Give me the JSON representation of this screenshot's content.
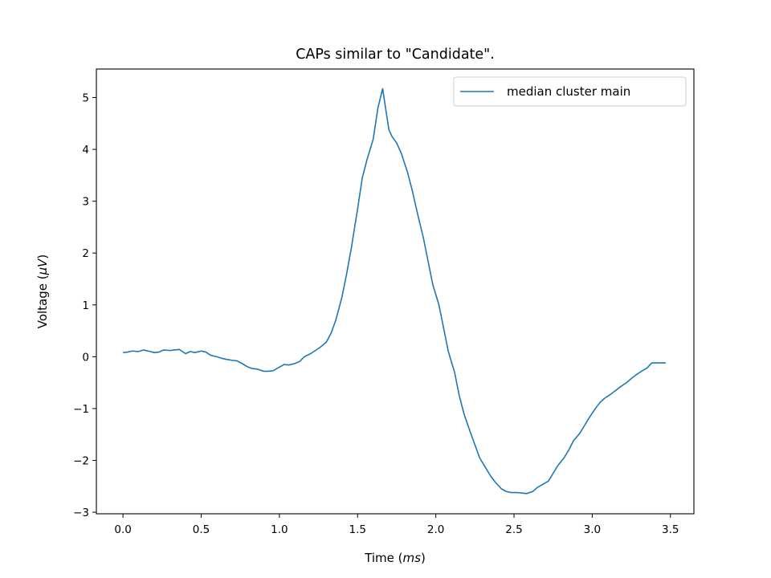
{
  "chart_data": {
    "type": "line",
    "title": "CAPs similar to \"Candidate\".",
    "xlabel_prefix": "Time (",
    "xlabel_unit": "ms",
    "xlabel_suffix": ")",
    "ylabel_prefix": "Voltage (",
    "ylabel_unit": "μV",
    "ylabel_suffix": ")",
    "xlim": [
      -0.17,
      3.65
    ],
    "ylim": [
      -3.03,
      5.55
    ],
    "x_ticks": [
      0.0,
      0.5,
      1.0,
      1.5,
      2.0,
      2.5,
      3.0,
      3.5
    ],
    "x_tick_labels": [
      "0.0",
      "0.5",
      "1.0",
      "1.5",
      "2.0",
      "2.5",
      "3.0",
      "3.5"
    ],
    "y_ticks": [
      -3,
      -2,
      -1,
      0,
      1,
      2,
      3,
      4,
      5
    ],
    "y_tick_labels": [
      "−3",
      "−2",
      "−1",
      "0",
      "1",
      "2",
      "3",
      "4",
      "5"
    ],
    "grid": false,
    "legend_position": "top-right",
    "series": [
      {
        "name": "median cluster main",
        "color": "#1f77b4",
        "x": [
          0.0,
          0.03,
          0.06,
          0.1,
          0.13,
          0.16,
          0.2,
          0.23,
          0.26,
          0.3,
          0.33,
          0.36,
          0.4,
          0.43,
          0.46,
          0.5,
          0.53,
          0.56,
          0.6,
          0.63,
          0.66,
          0.7,
          0.73,
          0.76,
          0.8,
          0.83,
          0.86,
          0.9,
          0.93,
          0.96,
          1.0,
          1.03,
          1.06,
          1.1,
          1.13,
          1.16,
          1.2,
          1.23,
          1.26,
          1.3,
          1.33,
          1.36,
          1.4,
          1.43,
          1.46,
          1.5,
          1.53,
          1.56,
          1.6,
          1.63,
          1.66,
          1.7,
          1.72,
          1.75,
          1.78,
          1.82,
          1.85,
          1.88,
          1.92,
          1.95,
          1.98,
          2.02,
          2.05,
          2.08,
          2.12,
          2.15,
          2.18,
          2.22,
          2.25,
          2.28,
          2.32,
          2.35,
          2.38,
          2.42,
          2.45,
          2.48,
          2.52,
          2.55,
          2.58,
          2.62,
          2.65,
          2.68,
          2.72,
          2.75,
          2.78,
          2.82,
          2.85,
          2.88,
          2.92,
          2.95,
          2.98,
          3.02,
          3.05,
          3.08,
          3.12,
          3.15,
          3.18,
          3.22,
          3.25,
          3.28,
          3.32,
          3.35,
          3.38,
          3.42,
          3.45,
          3.47
        ],
        "y": [
          0.08,
          0.09,
          0.11,
          0.1,
          0.13,
          0.11,
          0.08,
          0.09,
          0.13,
          0.12,
          0.13,
          0.14,
          0.06,
          0.1,
          0.08,
          0.11,
          0.09,
          0.03,
          0.0,
          -0.03,
          -0.05,
          -0.07,
          -0.08,
          -0.13,
          -0.2,
          -0.23,
          -0.24,
          -0.28,
          -0.28,
          -0.27,
          -0.2,
          -0.15,
          -0.16,
          -0.13,
          -0.09,
          0.0,
          0.06,
          0.12,
          0.18,
          0.28,
          0.45,
          0.7,
          1.15,
          1.6,
          2.1,
          2.85,
          3.45,
          3.8,
          4.2,
          4.8,
          5.17,
          4.38,
          4.25,
          4.12,
          3.92,
          3.55,
          3.2,
          2.8,
          2.3,
          1.85,
          1.4,
          1.0,
          0.55,
          0.1,
          -0.3,
          -0.75,
          -1.1,
          -1.45,
          -1.7,
          -1.95,
          -2.15,
          -2.3,
          -2.42,
          -2.55,
          -2.6,
          -2.62,
          -2.62,
          -2.63,
          -2.64,
          -2.6,
          -2.52,
          -2.47,
          -2.4,
          -2.25,
          -2.1,
          -1.95,
          -1.8,
          -1.62,
          -1.48,
          -1.33,
          -1.18,
          -1.0,
          -0.88,
          -0.8,
          -0.72,
          -0.65,
          -0.58,
          -0.5,
          -0.42,
          -0.35,
          -0.27,
          -0.22,
          -0.12,
          -0.12,
          -0.12,
          -0.12
        ]
      }
    ]
  }
}
